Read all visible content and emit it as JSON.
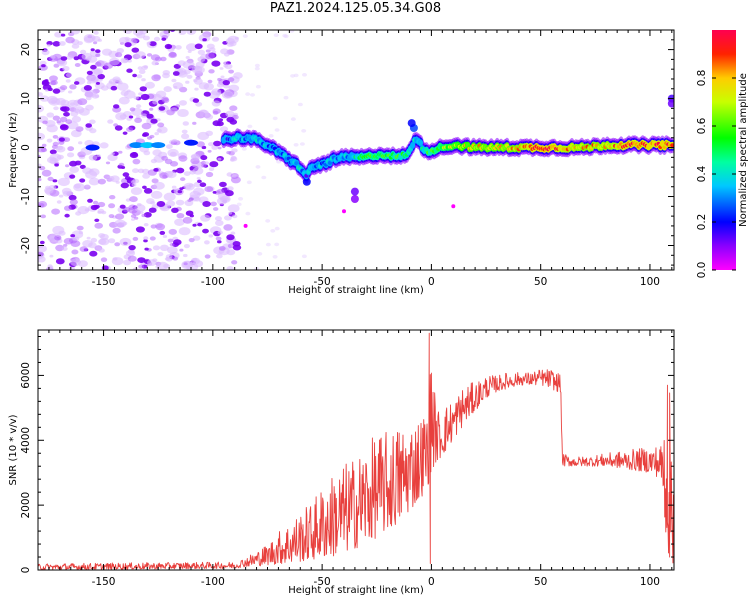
{
  "figure_title": "PAZ1.2024.125.05.34.G08",
  "colors": {
    "snr_line": "#e8403d",
    "frame": "#000000",
    "background": "#ffffff"
  },
  "chart_data": [
    {
      "type": "heatmap",
      "title": "",
      "xlabel": "Height of straight line (km)",
      "ylabel": "Frequency (Hz)",
      "xlim": [
        -180,
        111
      ],
      "ylim": [
        -25,
        24
      ],
      "x_ticks": [
        -150,
        -100,
        -50,
        0,
        50,
        100
      ],
      "y_ticks": [
        -20,
        -10,
        0,
        10,
        20
      ],
      "colorbar": {
        "label": "Normalized spectral amplitude",
        "range": [
          0,
          1
        ],
        "ticks": [
          "0.0",
          "0.2",
          "0.4",
          "0.6",
          "0.8"
        ],
        "colormap": "gist_rainbow"
      },
      "ridge": {
        "description": "dominant signal frequency track",
        "x": [
          -95,
          -90,
          -85,
          -80,
          -75,
          -70,
          -65,
          -60,
          -57,
          -55,
          -50,
          -45,
          -40,
          -35,
          -30,
          -25,
          -20,
          -15,
          -10,
          -7,
          -5,
          -3,
          0,
          10,
          20,
          30,
          40,
          50,
          60,
          70,
          80,
          90,
          100,
          111
        ],
        "y": [
          1.5,
          2,
          2,
          1.5,
          0.5,
          -1,
          -2.5,
          -4,
          -6,
          -4,
          -3.5,
          -2.5,
          -2,
          -2,
          -2,
          -1.5,
          -1.5,
          -2,
          -1,
          2,
          1,
          -1,
          -0.5,
          0.5,
          0,
          0,
          0,
          0,
          0,
          0,
          0.5,
          0.5,
          0.5,
          0.5
        ],
        "strength": [
          0.2,
          0.3,
          0.35,
          0.35,
          0.3,
          0.3,
          0.35,
          0.35,
          0.25,
          0.3,
          0.3,
          0.35,
          0.35,
          0.4,
          0.55,
          0.55,
          0.5,
          0.5,
          0.45,
          0.3,
          0.35,
          0.45,
          0.55,
          0.65,
          0.75,
          0.75,
          0.8,
          0.95,
          0.85,
          0.8,
          0.8,
          0.9,
          0.9,
          0.9
        ]
      },
      "noise_region_x": [
        -180,
        -88
      ]
    },
    {
      "type": "line",
      "title": "",
      "xlabel": "Height of straight line (km)",
      "ylabel": "SNR (10 * v/v)",
      "xlim": [
        -180,
        111
      ],
      "ylim": [
        0,
        7400
      ],
      "x_ticks": [
        -150,
        -100,
        -50,
        0,
        50,
        100
      ],
      "y_ticks": [
        0,
        2000,
        4000,
        6000
      ],
      "series": [
        {
          "color": "#e8403d",
          "envelope_x": [
            -180,
            -90,
            -85,
            -80,
            -75,
            -70,
            -65,
            -60,
            -55,
            -50,
            -45,
            -40,
            -35,
            -30,
            -25,
            -20,
            -15,
            -10,
            -5,
            -2,
            0,
            2,
            5,
            10,
            15,
            20,
            25,
            30,
            35,
            40,
            45,
            50,
            55,
            57,
            59,
            60,
            65,
            70,
            80,
            90,
            100,
            105,
            108,
            111
          ],
          "envelope_lo": [
            0,
            50,
            100,
            120,
            150,
            180,
            200,
            250,
            300,
            350,
            400,
            500,
            650,
            800,
            1000,
            1200,
            1400,
            1800,
            2200,
            2500,
            3000,
            3300,
            3500,
            4000,
            4500,
            4900,
            5300,
            5500,
            5600,
            5700,
            5700,
            5700,
            5600,
            5500,
            5500,
            3200,
            3200,
            3200,
            3200,
            3100,
            3000,
            2800,
            500,
            100
          ],
          "envelope_hi": [
            200,
            250,
            400,
            600,
            800,
            1200,
            1500,
            1800,
            2100,
            2600,
            3000,
            3300,
            3500,
            3900,
            4200,
            4300,
            4500,
            4600,
            4800,
            5000,
            7300,
            5000,
            5000,
            5300,
            5700,
            5800,
            6000,
            6000,
            6100,
            6100,
            6100,
            6200,
            6200,
            6100,
            6100,
            3600,
            3500,
            3500,
            3600,
            3700,
            3800,
            3900,
            5700,
            5200
          ],
          "spikes": [
            {
              "x": -1,
              "y": 7300
            },
            {
              "x": -0.5,
              "y": 200
            },
            {
              "x": 108,
              "y": 5700
            },
            {
              "x": 109,
              "y": 400
            }
          ]
        }
      ]
    }
  ]
}
